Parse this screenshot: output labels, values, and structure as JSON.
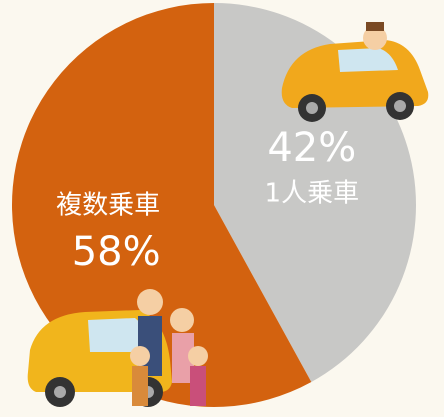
{
  "chart_data": {
    "type": "pie",
    "categories": [
      "1人乗車",
      "複数乗車"
    ],
    "values": [
      42,
      58
    ],
    "value_labels": [
      "42%",
      "58%"
    ],
    "colors": [
      "#c8c8c6",
      "#d3620f"
    ]
  }
}
